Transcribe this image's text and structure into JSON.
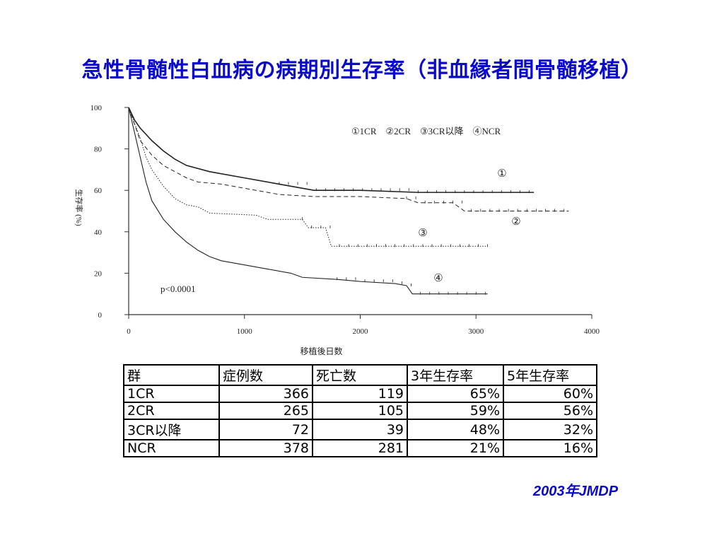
{
  "slide": {
    "title": "急性骨髄性白血病の病期別生存率（非血縁者間骨髄移植）",
    "source": "2003年JMDP"
  },
  "chart_data": {
    "type": "line",
    "title": "",
    "xlabel": "移植後日数",
    "ylabel": "生存率 (%)",
    "xlim": [
      0,
      4000
    ],
    "ylim": [
      0,
      100
    ],
    "x_ticks": [
      0,
      1000,
      2000,
      3000,
      4000
    ],
    "y_ticks": [
      0,
      20,
      40,
      60,
      80,
      100
    ],
    "legend_text": "①1CR　②2CR　③3CR以降　④NCR",
    "pvalue": "p<0.0001",
    "series": [
      {
        "name": "①1CR",
        "marker": "①",
        "style": "solid",
        "x": [
          0,
          50,
          100,
          200,
          300,
          400,
          500,
          700,
          1000,
          1300,
          1600,
          2000,
          2500,
          3000,
          3500
        ],
        "y": [
          100,
          94,
          90,
          84,
          79,
          75,
          72,
          69,
          66,
          63,
          60,
          60,
          59,
          59,
          59
        ]
      },
      {
        "name": "②2CR",
        "marker": "②",
        "style": "dashed",
        "x": [
          0,
          50,
          100,
          200,
          300,
          400,
          500,
          600,
          800,
          1000,
          1300,
          1600,
          2000,
          2400,
          2500,
          2800,
          2900,
          3200,
          3800
        ],
        "y": [
          100,
          92,
          84,
          77,
          72,
          69,
          66,
          64,
          63,
          61,
          58,
          57,
          57,
          56,
          54,
          54,
          50,
          50,
          50
        ]
      },
      {
        "name": "③3CR以降",
        "marker": "③",
        "style": "dotted",
        "x": [
          0,
          100,
          150,
          200,
          300,
          400,
          500,
          600,
          700,
          1100,
          1200,
          1500,
          1550,
          1700,
          1750,
          2500,
          3100
        ],
        "y": [
          100,
          85,
          76,
          70,
          62,
          56,
          53,
          52,
          49,
          48,
          46,
          46,
          42,
          42,
          33,
          33,
          33
        ]
      },
      {
        "name": "④NCR",
        "marker": "④",
        "style": "solid-thin",
        "x": [
          0,
          50,
          100,
          150,
          200,
          300,
          400,
          500,
          600,
          700,
          800,
          1000,
          1200,
          1400,
          1500,
          1800,
          2000,
          2300,
          2400,
          2450,
          3100
        ],
        "y": [
          100,
          88,
          76,
          64,
          55,
          46,
          40,
          35,
          31,
          28,
          26,
          24,
          22,
          20,
          18,
          17,
          16,
          15,
          14,
          10,
          10
        ]
      }
    ]
  },
  "table": {
    "headers": [
      "群",
      "症例数",
      "死亡数",
      "3年生存率",
      "5年生存率"
    ],
    "rows": [
      [
        "1CR",
        "366",
        "119",
        "65%",
        "60%"
      ],
      [
        "2CR",
        "265",
        "105",
        "59%",
        "56%"
      ],
      [
        "3CR以降",
        "72",
        "39",
        "48%",
        "32%"
      ],
      [
        "NCR",
        "378",
        "281",
        "21%",
        "16%"
      ]
    ]
  }
}
